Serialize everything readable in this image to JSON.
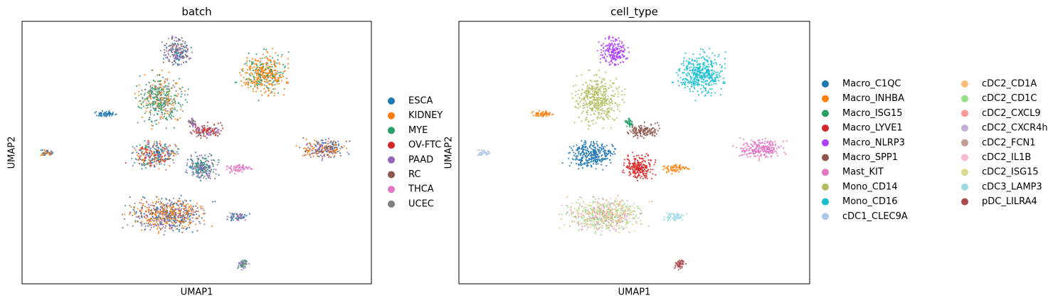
{
  "chart_data": [
    {
      "type": "scatter",
      "title": "batch",
      "x_label": "UMAP1",
      "y_label": "UMAP2",
      "series": [
        {
          "name": "ESCA",
          "color": "#1f77b4"
        },
        {
          "name": "KIDNEY",
          "color": "#ff7f0e"
        },
        {
          "name": "MYE",
          "color": "#279e68"
        },
        {
          "name": "OV-FTC",
          "color": "#d62728"
        },
        {
          "name": "PAAD",
          "color": "#9467bd"
        },
        {
          "name": "RC",
          "color": "#8c564b"
        },
        {
          "name": "THCA",
          "color": "#e377c2"
        },
        {
          "name": "UCEC",
          "color": "#7f7f7f"
        }
      ]
    },
    {
      "type": "scatter",
      "title": "cell_type",
      "x_label": "UMAP1",
      "y_label": "UMAP2",
      "series": [
        {
          "name": "Macro_C1QC",
          "color": "#1f77b4"
        },
        {
          "name": "Macro_INHBA",
          "color": "#ff7f0e"
        },
        {
          "name": "Macro_ISG15",
          "color": "#279e68"
        },
        {
          "name": "Macro_LYVE1",
          "color": "#d62728"
        },
        {
          "name": "Macro_NLRP3",
          "color": "#aa40fc"
        },
        {
          "name": "Macro_SPP1",
          "color": "#8c564b"
        },
        {
          "name": "Mast_KIT",
          "color": "#e377c2"
        },
        {
          "name": "Mono_CD14",
          "color": "#b5bd61"
        },
        {
          "name": "Mono_CD16",
          "color": "#17becf"
        },
        {
          "name": "cDC1_CLEC9A",
          "color": "#aec7e8"
        },
        {
          "name": "cDC2_CD1A",
          "color": "#ffbb78"
        },
        {
          "name": "cDC2_CD1C",
          "color": "#98df8a"
        },
        {
          "name": "cDC2_CXCL9",
          "color": "#ff9896"
        },
        {
          "name": "cDC2_CXCR4hi",
          "color": "#c5b0d5"
        },
        {
          "name": "cDC2_FCN1",
          "color": "#c49c94"
        },
        {
          "name": "cDC2_IL1B",
          "color": "#f7b6d2"
        },
        {
          "name": "cDC2_ISG15",
          "color": "#dbdb8d"
        },
        {
          "name": "cDC3_LAMP3",
          "color": "#9edae5"
        },
        {
          "name": "pDC_LILRA4",
          "color": "#ad494a"
        }
      ]
    }
  ]
}
